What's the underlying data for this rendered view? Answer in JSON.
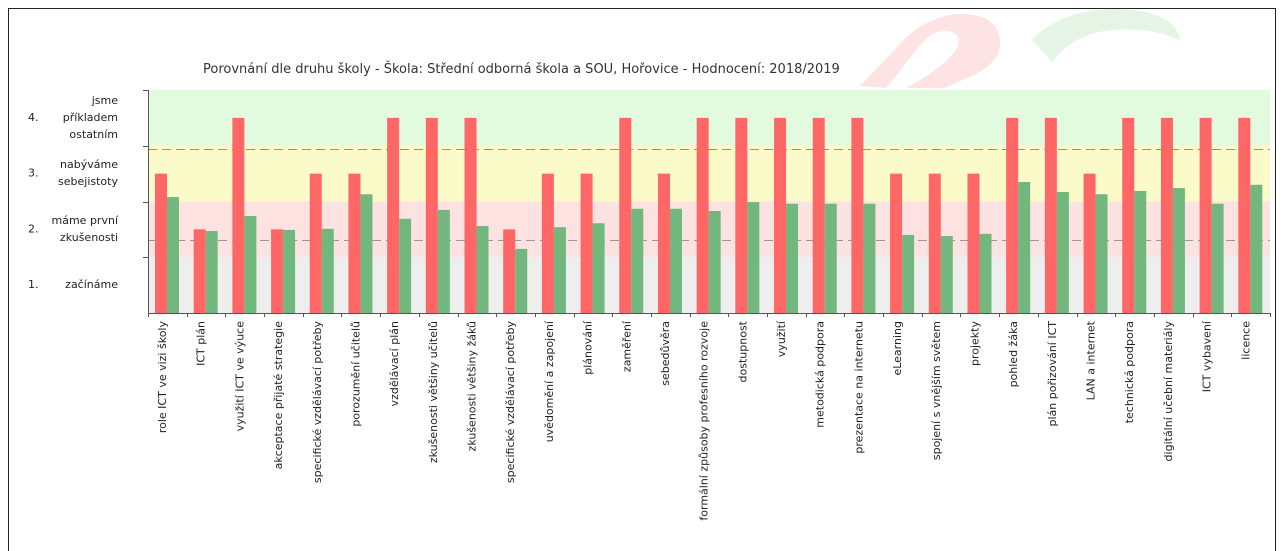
{
  "chart_data": {
    "type": "bar",
    "title": "Porovnání dle druhu školy - Škola: Střední odborná škola a SOU, Hořovice - Hodnocení: 2018/2019",
    "categories": [
      "role ICT ve vizi školy",
      "ICT plán",
      "využití ICT ve výuce",
      "akceptace přijaté strategie",
      "specifické vzdělávací potřeby",
      "porozumění učitelů",
      "vzdělávací plán",
      "zkušenosti většiny učitelů",
      "zkušenosti většiny žáků",
      "specifické vzdělávací potřeby",
      "uvědomění a zapojení",
      "plánování",
      "zaměření",
      "sebedůvěra",
      "formální způsoby profesního rozvoje",
      "dostupnost",
      "využití",
      "metodická podpora",
      "prezentace na internetu",
      "eLearning",
      "spojení s vnějším světem",
      "projekty",
      "pohled žáka",
      "plán pořizování ICT",
      "LAN a internet",
      "technická podpora",
      "digitální učební materiály",
      "ICT vybavení",
      "licence"
    ],
    "series": [
      {
        "color": "#ff6666",
        "values": [
          3,
          2,
          4,
          2,
          3,
          3,
          4,
          4,
          4,
          2,
          3,
          3,
          4,
          3,
          4,
          4,
          4,
          4,
          4,
          3,
          3,
          3,
          4,
          4,
          3,
          4,
          4,
          4,
          4
        ]
      },
      {
        "color": "#72b77e",
        "values": [
          2.58,
          1.97,
          2.24,
          1.99,
          2.01,
          2.63,
          2.19,
          2.35,
          2.06,
          1.65,
          2.04,
          2.11,
          2.37,
          2.37,
          2.33,
          2.49,
          2.46,
          2.46,
          2.46,
          1.9,
          1.88,
          1.92,
          2.85,
          2.67,
          2.63,
          2.69,
          2.74,
          2.46,
          2.8
        ]
      }
    ],
    "ylim": [
      0.5,
      4.5
    ],
    "y_levels": [
      {
        "number": "4.",
        "value": 4,
        "lines": [
          "jsme",
          "příkladem",
          "ostatním"
        ]
      },
      {
        "number": "3.",
        "value": 3,
        "lines": [
          "nabýváme",
          "sebejistoty"
        ]
      },
      {
        "number": "2.",
        "value": 2,
        "lines": [
          "máme první",
          "zkušenosti"
        ]
      },
      {
        "number": "1.",
        "value": 1,
        "lines": [
          "začínáme"
        ]
      }
    ],
    "bands": [
      {
        "from": 0.5,
        "to": 1.5,
        "color": "#eeeeee"
      },
      {
        "from": 1.5,
        "to": 2.5,
        "color": "#fde2e2"
      },
      {
        "from": 2.5,
        "to": 3.5,
        "color": "#fbfbc9"
      },
      {
        "from": 3.5,
        "to": 4.5,
        "color": "#e2fbdf"
      }
    ],
    "reference_lines": [
      {
        "value": 3.45,
        "color": "#ff6666"
      },
      {
        "value": 1.81,
        "color": "#999999"
      }
    ],
    "grid": false,
    "legend": "none"
  }
}
